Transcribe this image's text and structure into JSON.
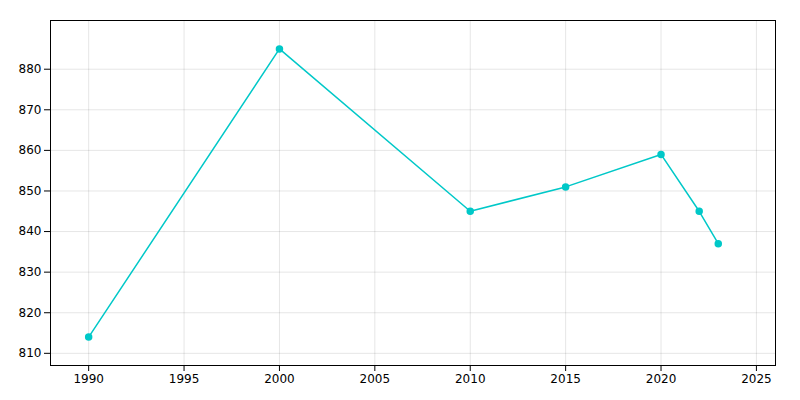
{
  "chart_data": {
    "type": "line",
    "x": [
      1990,
      2000,
      2010,
      2015,
      2020,
      2022,
      2023
    ],
    "values": [
      814,
      885,
      845,
      851,
      859,
      845,
      837
    ],
    "color": "#00C8C8",
    "marker": "circle",
    "xlim": [
      1988,
      2026
    ],
    "ylim": [
      807,
      892
    ],
    "xticks": [
      1990,
      1995,
      2000,
      2005,
      2010,
      2015,
      2020,
      2025
    ],
    "yticks": [
      810,
      820,
      830,
      840,
      850,
      860,
      870,
      880
    ],
    "grid": true
  }
}
